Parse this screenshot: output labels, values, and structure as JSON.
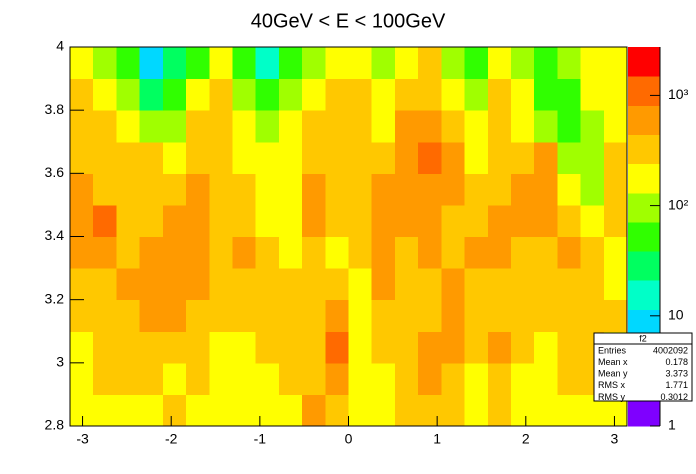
{
  "chart_data": {
    "type": "heatmap",
    "title": "40GeV < E < 100GeV",
    "xlim": [
      -3.1416,
      3.1416
    ],
    "ylim": [
      2.8,
      4
    ],
    "xticks": [
      -3,
      -2,
      -1,
      0,
      1,
      2,
      3
    ],
    "yticks": [
      2.8,
      3,
      3.2,
      3.4,
      3.6,
      3.8,
      4
    ],
    "zlim": [
      1,
      2750
    ],
    "zscale": "log",
    "zticks": [
      1,
      10,
      {
        "value": 100,
        "label": "10²"
      },
      {
        "value": 1000,
        "label": "10³"
      }
    ],
    "palette": [
      "#7f00ff",
      "#3a30ff",
      "#2f8fff",
      "#00d8ff",
      "#00ffc8",
      "#00ff60",
      "#30ff00",
      "#a0ff00",
      "#ffff00",
      "#ffc800",
      "#ff9a00",
      "#ff6a00",
      "#ff0000"
    ],
    "xbins": [
      -3.1416,
      -2.8798,
      -2.618,
      -2.3562,
      -2.0944,
      -1.8326,
      -1.5708,
      -1.309,
      -1.0472,
      -0.7854,
      -0.5236,
      -0.2618,
      0,
      0.2618,
      0.5236,
      0.7854,
      1.0472,
      1.309,
      1.5708,
      1.8326,
      2.0944,
      2.3562,
      2.618,
      2.8798,
      3.1416
    ],
    "ybins": [
      2.8,
      2.9,
      3,
      3.1,
      3.2,
      3.3,
      3.4,
      3.5,
      3.6,
      3.7,
      3.8,
      3.9,
      4
    ],
    "z": [
      [
        150,
        200,
        200,
        200,
        250,
        200,
        150,
        150,
        200,
        200,
        800,
        300,
        150,
        200,
        250,
        300,
        250,
        200,
        300,
        200,
        200,
        200,
        200,
        150
      ],
      [
        150,
        250,
        300,
        250,
        200,
        250,
        200,
        150,
        200,
        300,
        250,
        500,
        150,
        200,
        250,
        500,
        300,
        200,
        400,
        200,
        200,
        300,
        250,
        200
      ],
      [
        200,
        300,
        400,
        300,
        400,
        300,
        200,
        200,
        300,
        400,
        300,
        1000,
        200,
        250,
        300,
        700,
        500,
        300,
        700,
        300,
        200,
        250,
        300,
        200
      ],
      [
        250,
        300,
        400,
        500,
        700,
        400,
        250,
        300,
        300,
        400,
        300,
        600,
        200,
        300,
        300,
        400,
        600,
        300,
        400,
        300,
        250,
        300,
        300,
        250
      ],
      [
        300,
        400,
        500,
        700,
        500,
        500,
        300,
        400,
        300,
        300,
        300,
        300,
        200,
        500,
        400,
        400,
        600,
        400,
        400,
        300,
        300,
        400,
        300,
        200
      ],
      [
        500,
        700,
        400,
        600,
        600,
        500,
        400,
        500,
        300,
        200,
        400,
        200,
        300,
        600,
        400,
        500,
        400,
        500,
        500,
        400,
        400,
        500,
        300,
        200
      ],
      [
        600,
        900,
        400,
        300,
        600,
        500,
        400,
        400,
        200,
        200,
        500,
        300,
        400,
        500,
        500,
        500,
        400,
        400,
        500,
        500,
        500,
        400,
        150,
        250
      ],
      [
        500,
        400,
        300,
        300,
        400,
        500,
        400,
        300,
        200,
        200,
        500,
        300,
        400,
        500,
        600,
        800,
        500,
        300,
        400,
        500,
        700,
        150,
        100,
        300
      ],
      [
        400,
        300,
        300,
        250,
        200,
        400,
        300,
        200,
        150,
        150,
        400,
        300,
        300,
        400,
        700,
        900,
        500,
        200,
        300,
        300,
        800,
        80,
        80,
        250
      ],
      [
        300,
        400,
        200,
        120,
        100,
        300,
        400,
        200,
        100,
        150,
        300,
        350,
        400,
        200,
        500,
        600,
        300,
        150,
        300,
        200,
        100,
        60,
        100,
        200
      ],
      [
        250,
        150,
        80,
        30,
        60,
        150,
        250,
        100,
        40,
        80,
        150,
        300,
        250,
        150,
        300,
        400,
        150,
        80,
        250,
        150,
        60,
        60,
        150,
        200
      ],
      [
        200,
        80,
        60,
        8,
        30,
        70,
        200,
        70,
        15,
        60,
        90,
        150,
        200,
        100,
        200,
        250,
        80,
        60,
        200,
        100,
        60,
        80,
        200,
        150
      ]
    ],
    "stats": {
      "title": "f2",
      "rows": [
        {
          "label": "Entries",
          "value": 4002092
        },
        {
          "label": "Mean x",
          "value": 0.178
        },
        {
          "label": "Mean y",
          "value": 3.373
        },
        {
          "label": "RMS x",
          "value": 1.771
        },
        {
          "label": "RMS y",
          "value": 0.3012
        }
      ]
    }
  }
}
